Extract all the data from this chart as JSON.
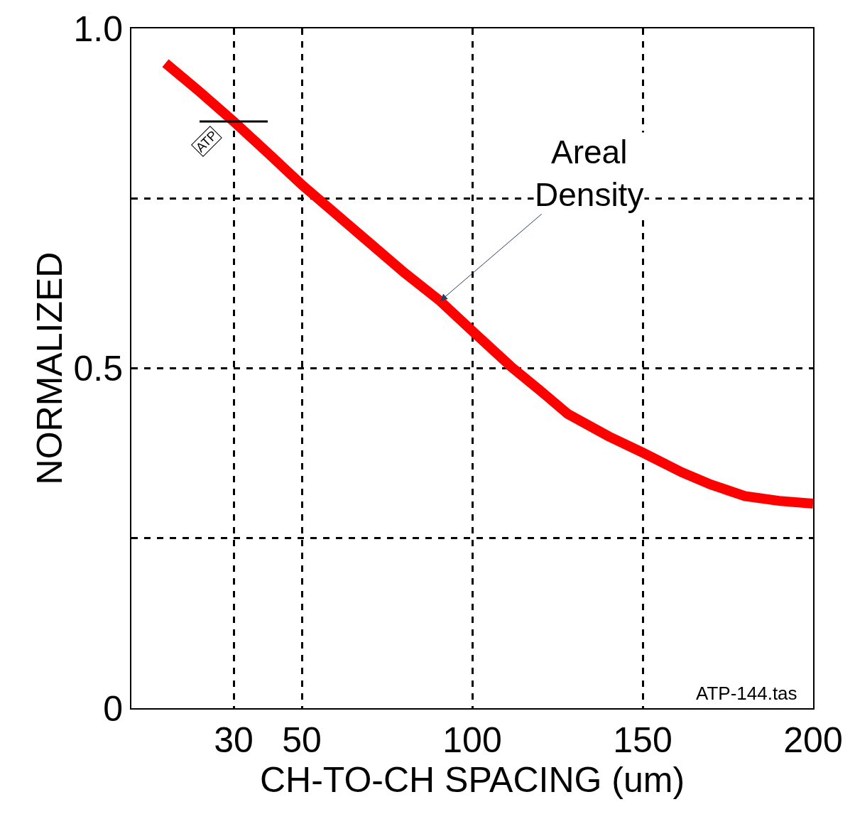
{
  "chart_data": {
    "type": "line",
    "xlabel": "CH-TO-CH SPACING (um)",
    "ylabel": "NORMALIZED",
    "x": [
      10,
      20,
      30,
      40,
      50,
      60,
      70,
      80,
      90.6,
      100,
      111.5,
      120,
      128,
      140,
      150,
      161.5,
      170,
      180,
      190,
      200
    ],
    "series": [
      {
        "color": "#ff0000",
        "values": [
          0.949,
          0.907,
          0.863,
          0.817,
          0.77,
          0.727,
          0.684,
          0.641,
          0.599,
          0.555,
          0.502,
          0.467,
          0.433,
          0.4,
          0.376,
          0.347,
          0.329,
          0.312,
          0.305,
          0.301
        ]
      }
    ],
    "xlim": [
      0,
      200
    ],
    "xticks": [
      30,
      50,
      100,
      150,
      200
    ],
    "ylim": [
      0,
      1
    ],
    "yticks": [
      {
        "value": 0,
        "label": "0"
      },
      {
        "value": 0.25,
        "label": null
      },
      0.5,
      {
        "value": 0.75,
        "label": null
      },
      {
        "value": 1,
        "label": "1.0"
      }
    ],
    "grid": true,
    "marker": "none",
    "line_style": "solid",
    "annotations": [
      {
        "text": "Areal\nDensity",
        "x": 90.6,
        "y": 0.599
      },
      {
        "text": "ATP",
        "x": 30,
        "y": 0.863
      },
      "ATP-144.tas"
    ]
  }
}
